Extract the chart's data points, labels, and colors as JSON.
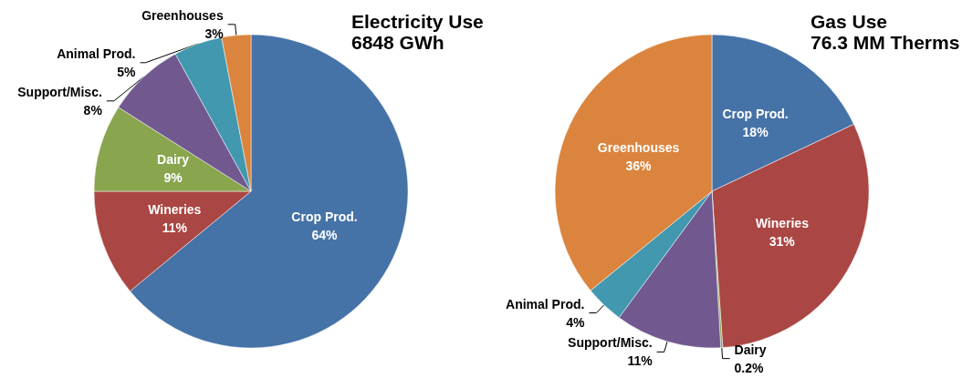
{
  "chart_data": [
    {
      "type": "pie",
      "title": "Electricity Use",
      "subtitle": "6848 GWh",
      "categories": [
        "Crop Prod.",
        "Wineries",
        "Dairy",
        "Support/Misc.",
        "Animal Prod.",
        "Greenhouses"
      ],
      "values": [
        64,
        11,
        9,
        8,
        5,
        3
      ],
      "value_labels": [
        "64%",
        "11%",
        "9%",
        "8%",
        "5%",
        "3%"
      ],
      "colors": [
        "#4572a7",
        "#aa4643",
        "#89a54e",
        "#71588f",
        "#4198af",
        "#db843d"
      ]
    },
    {
      "type": "pie",
      "title": "Gas Use",
      "subtitle": "76.3 MM Therms",
      "categories": [
        "Crop Prod.",
        "Wineries",
        "Dairy",
        "Support/Misc.",
        "Animal Prod.",
        "Greenhouses"
      ],
      "values": [
        18,
        31,
        0.2,
        11,
        4,
        36
      ],
      "value_labels": [
        "18%",
        "31%",
        "0.2%",
        "11%",
        "4%",
        "36%"
      ],
      "colors": [
        "#4572a7",
        "#aa4643",
        "#89a54e",
        "#71588f",
        "#4198af",
        "#db843d"
      ]
    }
  ]
}
